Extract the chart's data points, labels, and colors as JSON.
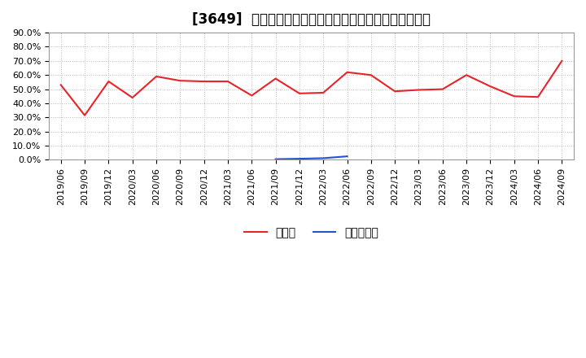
{
  "title": "[3649]  現預金、有利子負債の総資産に対する比率の推移",
  "x_labels": [
    "2019/06",
    "2019/09",
    "2019/12",
    "2020/03",
    "2020/06",
    "2020/09",
    "2020/12",
    "2021/03",
    "2021/06",
    "2021/09",
    "2021/12",
    "2022/03",
    "2022/06",
    "2022/09",
    "2022/12",
    "2023/03",
    "2023/06",
    "2023/09",
    "2023/12",
    "2024/03",
    "2024/06",
    "2024/09"
  ],
  "cash_ratio": [
    53.0,
    31.5,
    55.5,
    44.0,
    59.0,
    56.0,
    55.5,
    55.5,
    45.5,
    57.5,
    47.0,
    47.5,
    62.0,
    60.0,
    48.5,
    49.5,
    50.0,
    60.0,
    52.0,
    45.0,
    44.5,
    70.0
  ],
  "debt_ratio": [
    null,
    null,
    null,
    null,
    null,
    null,
    null,
    null,
    null,
    0.5,
    0.8,
    1.2,
    2.5,
    null,
    null,
    null,
    null,
    null,
    null,
    null,
    null,
    null
  ],
  "cash_color": "#e8242a",
  "debt_color": "#2255cc",
  "background_color": "#ffffff",
  "plot_bg_color": "#ffffff",
  "grid_color": "#aaaaaa",
  "ylim": [
    0.0,
    90.0
  ],
  "yticks": [
    0.0,
    10.0,
    20.0,
    30.0,
    40.0,
    50.0,
    60.0,
    70.0,
    80.0,
    90.0
  ],
  "legend_cash": "現預金",
  "legend_debt": "有利子負債",
  "title_fontsize": 12,
  "tick_fontsize": 8,
  "legend_fontsize": 10
}
